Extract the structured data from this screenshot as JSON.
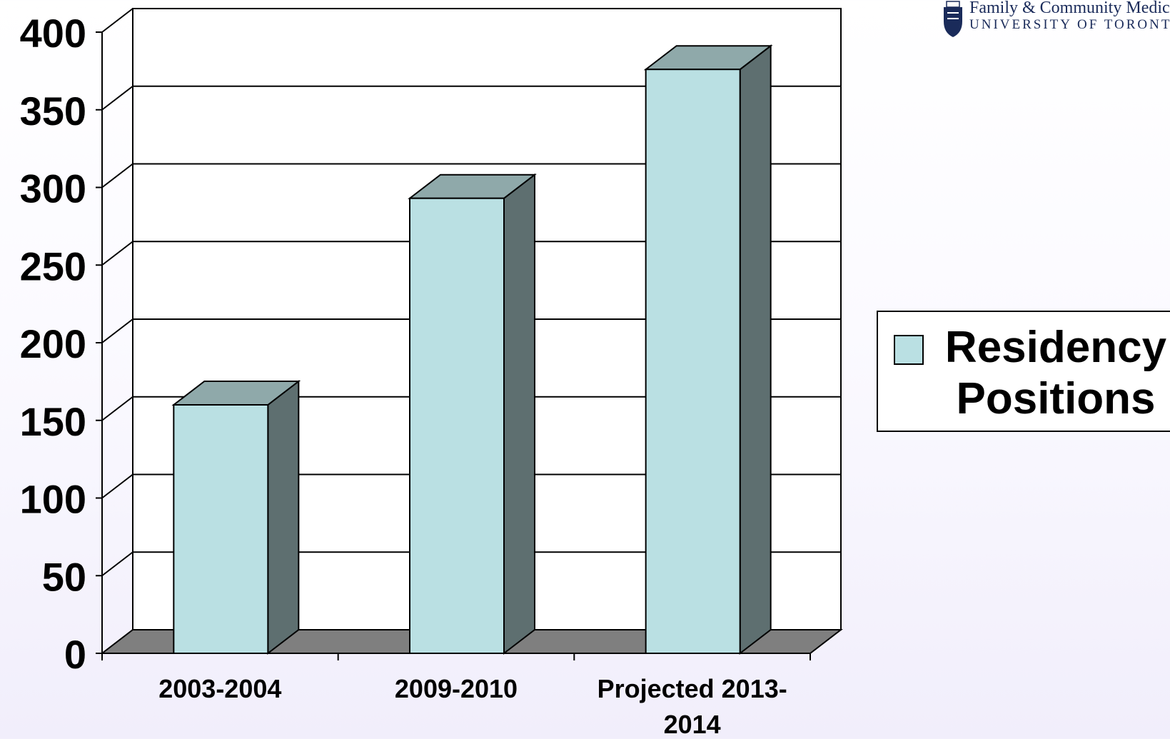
{
  "chart_data": {
    "type": "bar",
    "categories": [
      "2003-2004",
      "2009-2010",
      "Projected 2013-2014"
    ],
    "category_labels": [
      [
        "2003-2004"
      ],
      [
        "2009-2010"
      ],
      [
        "Projected 2013-",
        "2014"
      ]
    ],
    "series": [
      {
        "name": "Residency Positions",
        "values": [
          160,
          293,
          376
        ]
      }
    ],
    "ylim": [
      0,
      400
    ],
    "yticks": [
      0,
      50,
      100,
      150,
      200,
      250,
      300,
      350,
      400
    ],
    "grid": true,
    "style": "3d-column",
    "legend_position": "right",
    "colors": {
      "front": "#bae0e3",
      "top": "#8fa9aa",
      "side": "#5e6f70",
      "floor": "#7f7f7f"
    }
  },
  "legend": {
    "label": "Residency Positions"
  },
  "logo": {
    "line1": "Family & Community Medicine",
    "line2": "UNIVERSITY OF TORONTO"
  }
}
